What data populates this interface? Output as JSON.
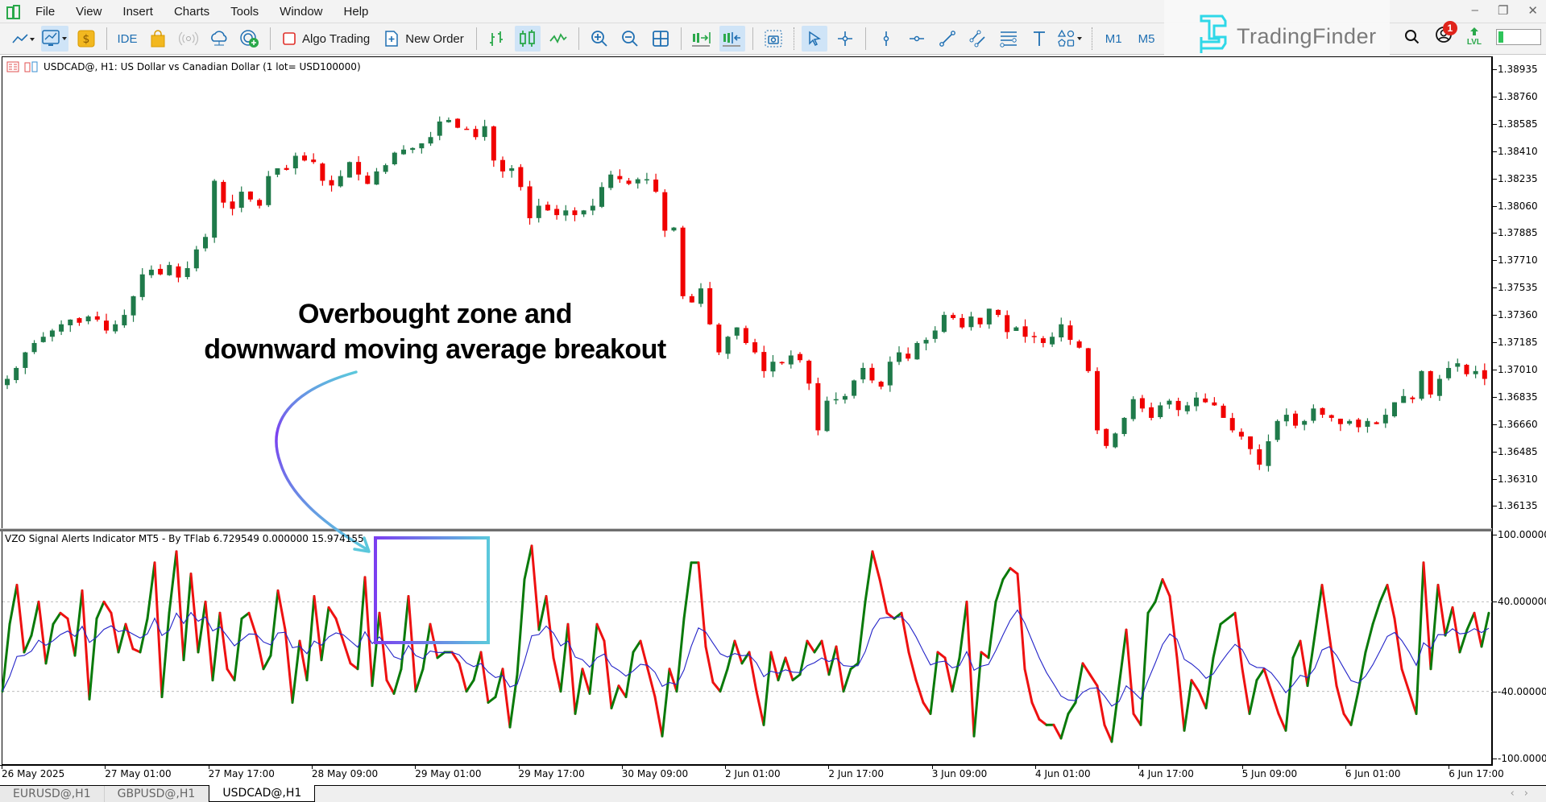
{
  "menu": {
    "items": [
      "File",
      "View",
      "Insert",
      "Charts",
      "Tools",
      "Window",
      "Help"
    ],
    "window_controls": [
      "minimize",
      "restore",
      "close"
    ]
  },
  "toolbar": {
    "ide_label": "IDE",
    "algo_trading_label": "Algo Trading",
    "new_order_label": "New Order",
    "timeframes": [
      "M1",
      "M5"
    ],
    "notification_count": "1",
    "level_label": "LVL"
  },
  "watermark": {
    "brand": "TradingFinder"
  },
  "chart": {
    "title": "USDCAD@, H1:  US Dollar vs Canadian Dollar  (1 lot= USD100000)",
    "indicator_title": "VZO Signal Alerts Indicator MT5 - By TFlab 6.729549 0.000000 15.974155",
    "annotation_line1": "Overbought zone and",
    "annotation_line2": "downward moving average breakout",
    "colors": {
      "bull": "#1f7a4a",
      "bear": "#f00000",
      "vzo_up": "#0a7a0a",
      "vzo_down": "#ee1111",
      "signal": "#2424c8",
      "box_start": "#7b3ff0",
      "box_end": "#5bc8dc"
    }
  },
  "price_axis": {
    "labels": [
      "1.38935",
      "1.38760",
      "1.38585",
      "1.38410",
      "1.38235",
      "1.38060",
      "1.37885",
      "1.37710",
      "1.37535",
      "1.37360",
      "1.37185",
      "1.37010",
      "1.36835",
      "1.36660",
      "1.36485",
      "1.36310",
      "1.36135"
    ]
  },
  "indicator_axis": {
    "labels": [
      "100.000000",
      "40.000000",
      "-40.000000",
      "-100.000000"
    ]
  },
  "time_axis": {
    "labels": [
      "26 May 2025",
      "27 May 01:00",
      "27 May 17:00",
      "28 May 09:00",
      "29 May 01:00",
      "29 May 17:00",
      "30 May 09:00",
      "2 Jun 01:00",
      "2 Jun 17:00",
      "3 Jun 09:00",
      "4 Jun 01:00",
      "4 Jun 17:00",
      "5 Jun 09:00",
      "6 Jun 01:00",
      "6 Jun 17:00"
    ]
  },
  "tabs": [
    {
      "label": "EURUSD@,H1",
      "active": false
    },
    {
      "label": "GBPUSD@,H1",
      "active": false
    },
    {
      "label": "USDCAD@,H1",
      "active": true
    }
  ],
  "chart_data": {
    "type": "candlestick+line",
    "title": "USDCAD@, H1 with VZO Signal Alerts Indicator",
    "price_close_path": [
      1.3695,
      1.3702,
      1.3712,
      1.3718,
      1.3722,
      1.3726,
      1.373,
      1.3733,
      1.3731,
      1.3735,
      1.3733,
      1.3726,
      1.373,
      1.3736,
      1.3748,
      1.3762,
      1.3765,
      1.3762,
      1.3768,
      1.376,
      1.3766,
      1.3778,
      1.3786,
      1.3822,
      1.3808,
      1.3804,
      1.3815,
      1.381,
      1.3806,
      1.3825,
      1.383,
      1.3829,
      1.3838,
      1.3835,
      1.3834,
      1.3822,
      1.3819,
      1.3825,
      1.3834,
      1.3826,
      1.382,
      1.3828,
      1.3832,
      1.384,
      1.3842,
      1.3843,
      1.3846,
      1.385,
      1.386,
      1.3861,
      1.3856,
      1.3855,
      1.385,
      1.3857,
      1.3835,
      1.3828,
      1.383,
      1.3818,
      1.3798,
      1.3806,
      1.3803,
      1.38,
      1.3803,
      1.38,
      1.3803,
      1.3806,
      1.3818,
      1.3826,
      1.3823,
      1.382,
      1.3823,
      1.3823,
      1.3815,
      1.379,
      1.3792,
      1.3748,
      1.3744,
      1.3753,
      1.373,
      1.3712,
      1.3722,
      1.3728,
      1.3718,
      1.3712,
      1.37,
      1.3706,
      1.3705,
      1.371,
      1.3707,
      1.3692,
      1.3662,
      1.3681,
      1.3682,
      1.3684,
      1.3694,
      1.3702,
      1.3694,
      1.369,
      1.3706,
      1.3712,
      1.3708,
      1.3718,
      1.372,
      1.3726,
      1.3736,
      1.3734,
      1.3728,
      1.3735,
      1.373,
      1.374,
      1.3736,
      1.3725,
      1.3728,
      1.3722,
      1.3722,
      1.3718,
      1.3722,
      1.373,
      1.372,
      1.3715,
      1.37,
      1.3662,
      1.3652,
      1.366,
      1.367,
      1.3682,
      1.3676,
      1.367,
      1.3678,
      1.3681,
      1.3675,
      1.3678,
      1.3683,
      1.368,
      1.3678,
      1.367,
      1.3662,
      1.3658,
      1.365,
      1.364,
      1.3655,
      1.3668,
      1.3672,
      1.3665,
      1.3668,
      1.3676,
      1.3672,
      1.367,
      1.3666,
      1.3668,
      1.3664,
      1.3668,
      1.3666,
      1.3672,
      1.368,
      1.3684,
      1.3682,
      1.37,
      1.3685,
      1.3695,
      1.3702,
      1.3705,
      1.3698,
      1.37,
      1.3695
    ],
    "price_ylim": [
      1.3605,
      1.39
    ],
    "indicator": {
      "name": "VZO",
      "ylim": [
        -100,
        100
      ],
      "levels": [
        40,
        -40
      ],
      "vzo_values": [
        -40,
        20,
        55,
        -5,
        10,
        40,
        -15,
        20,
        30,
        25,
        -8,
        50,
        -47,
        25,
        40,
        30,
        -5,
        20,
        -2,
        -5,
        25,
        75,
        -45,
        30,
        85,
        -12,
        65,
        -5,
        40,
        -30,
        30,
        -20,
        -30,
        25,
        30,
        10,
        -20,
        -8,
        50,
        15,
        -50,
        5,
        -30,
        45,
        -12,
        35,
        25,
        5,
        -15,
        -20,
        62,
        -35,
        30,
        -30,
        -42,
        -20,
        45,
        -40,
        -20,
        20,
        -10,
        -5,
        -5,
        -15,
        -40,
        -30,
        -5,
        -50,
        -45,
        -20,
        -72,
        -25,
        60,
        90,
        15,
        45,
        -10,
        -40,
        20,
        -60,
        -20,
        -42,
        20,
        5,
        -55,
        -35,
        -45,
        -5,
        5,
        -20,
        -45,
        -80,
        -20,
        -40,
        25,
        75,
        75,
        0,
        -32,
        -40,
        -20,
        5,
        -15,
        -5,
        -40,
        -70,
        -5,
        -30,
        -10,
        -30,
        -25,
        5,
        -5,
        5,
        -25,
        0,
        -40,
        -20,
        -15,
        40,
        85,
        60,
        30,
        25,
        30,
        -5,
        -30,
        -50,
        -60,
        -5,
        -10,
        -40,
        -10,
        40,
        -80,
        -5,
        -10,
        40,
        60,
        70,
        65,
        -20,
        -50,
        -65,
        -70,
        -70,
        -82,
        -60,
        -50,
        -15,
        -25,
        -35,
        -70,
        -85,
        -35,
        15,
        -60,
        -70,
        30,
        40,
        60,
        45,
        -10,
        -75,
        -30,
        -40,
        -55,
        -10,
        20,
        25,
        30,
        -20,
        -60,
        -30,
        -20,
        -40,
        -60,
        -75,
        -10,
        5,
        -35,
        10,
        55,
        10,
        -35,
        -60,
        -70,
        -40,
        -5,
        20,
        40,
        55,
        25,
        -20,
        -40,
        -60,
        75,
        -20,
        55,
        10,
        35,
        -5,
        15,
        30,
        0,
        30
      ],
      "signal_line": "moving average of VZO (blue)"
    },
    "annotation": "Overbought zone and downward moving average breakout",
    "highlight_box": "overbought zone around 29 May 01:00"
  }
}
